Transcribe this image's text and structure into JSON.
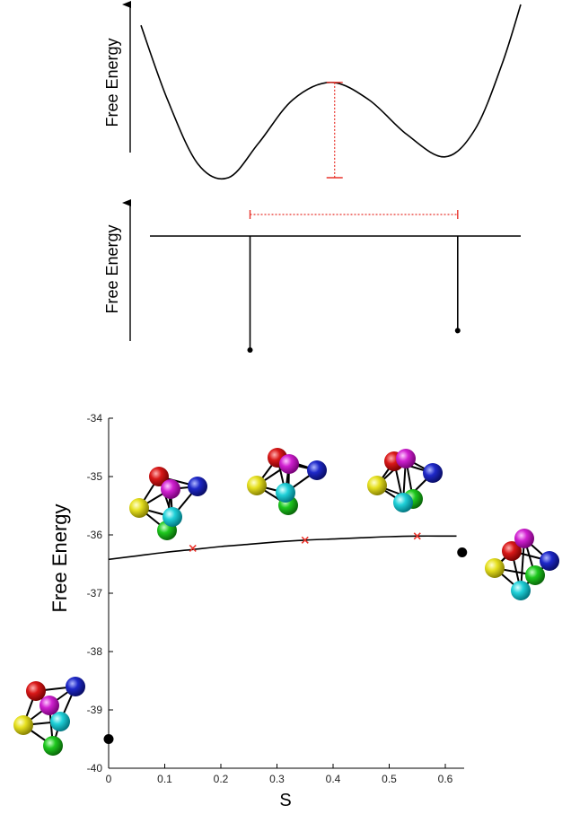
{
  "panel_top": {
    "ylabel": "Free Energy"
  },
  "panel_middle": {
    "ylabel": "Free Energy"
  },
  "colors": {
    "curve": "#000000",
    "marker": "#e8332b",
    "atom_red": "#d81818",
    "atom_magenta": "#d020d0",
    "atom_blue": "#1e28c8",
    "atom_yellow": "#e6e020",
    "atom_cyan": "#20d0d8",
    "atom_green": "#1ec81e"
  },
  "chart_data": [
    {
      "type": "line",
      "description_free": true,
      "title": "",
      "xlabel": "",
      "ylabel": "Free Energy",
      "series": [
        {
          "values_x": [
            0.0,
            0.07,
            0.15,
            0.23,
            0.31,
            0.4,
            0.5,
            0.6,
            0.7,
            0.8,
            0.88,
            0.95,
            1.0
          ],
          "values_y": [
            0.88,
            0.45,
            0.08,
            0.0,
            0.2,
            0.45,
            0.55,
            0.45,
            0.25,
            0.12,
            0.28,
            0.65,
            1.0
          ]
        }
      ],
      "barrier_marker": {
        "x": 0.51,
        "y_from": 0.55,
        "y_to": 0.0
      }
    },
    {
      "type": "line",
      "title": "",
      "xlabel": "",
      "ylabel": "Free Energy",
      "baseline": 0.0,
      "stems": [
        {
          "x": 0.27,
          "y": -1.0
        },
        {
          "x": 0.83,
          "y": -0.83
        }
      ],
      "distance_marker": {
        "x_from": 0.27,
        "x_to": 0.83
      }
    },
    {
      "type": "line",
      "title": "",
      "xlabel": "S",
      "ylabel": "Free Energy",
      "xlim": [
        0,
        0.65
      ],
      "ylim": [
        -40,
        -34
      ],
      "x_ticks": [
        "0",
        "0.1",
        "0.2",
        "0.3",
        "0.4",
        "0.5",
        "0.6"
      ],
      "x_tick_values": [
        0,
        0.1,
        0.2,
        0.3,
        0.4,
        0.5,
        0.6
      ],
      "y_ticks": [
        "-34",
        "-35",
        "-36",
        "-37",
        "-38",
        "-39",
        "-40"
      ],
      "y_tick_values": [
        -34,
        -35,
        -36,
        -37,
        -38,
        -39,
        -40
      ],
      "series": [
        {
          "x": [
            0,
            0.05,
            0.1,
            0.15,
            0.2,
            0.25,
            0.3,
            0.35,
            0.4,
            0.45,
            0.5,
            0.55,
            0.6,
            0.62
          ],
          "y": [
            -36.42,
            -36.36,
            -36.3,
            -36.25,
            -36.2,
            -36.16,
            -36.12,
            -36.09,
            -36.07,
            -36.05,
            -36.03,
            -36.02,
            -36.02,
            -36.02
          ]
        }
      ],
      "markers": [
        {
          "x": 0.15,
          "y": -36.23
        },
        {
          "x": 0.35,
          "y": -36.09
        },
        {
          "x": 0.55,
          "y": -36.02
        }
      ],
      "points": [
        {
          "x": 0,
          "y": -39.5
        },
        {
          "x": 0.63,
          "y": -36.3
        }
      ]
    }
  ]
}
